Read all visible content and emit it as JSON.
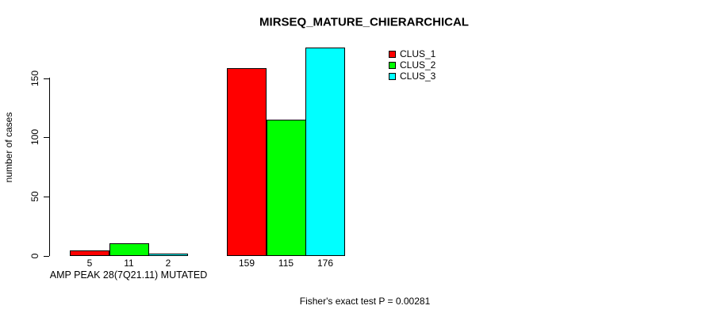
{
  "chart_data": {
    "type": "bar",
    "title": "MIRSEQ_MATURE_CHIERARCHICAL",
    "ylabel": "number of cases",
    "xlabel": "AMP PEAK 28(7Q21.11) MUTATED",
    "footnote": "Fisher's exact test P = 0.00281",
    "ylim": [
      0,
      176
    ],
    "yticks": [
      0,
      50,
      100,
      150
    ],
    "grid": false,
    "legend_position": "top-right",
    "groups": [
      "AMP PEAK 28(7Q21.11) MUTATED",
      ""
    ],
    "series": [
      {
        "name": "CLUS_1",
        "color": "#ff0000",
        "values": [
          5,
          159
        ]
      },
      {
        "name": "CLUS_2",
        "color": "#00ff00",
        "values": [
          11,
          115
        ]
      },
      {
        "name": "CLUS_3",
        "color": "#00ffff",
        "values": [
          2,
          176
        ]
      }
    ],
    "bar_labels": [
      [
        5,
        11,
        2
      ],
      [
        159,
        115,
        176
      ]
    ],
    "colors": {
      "background": "#ffffff",
      "axis": "#000000",
      "text": "#000000"
    }
  }
}
